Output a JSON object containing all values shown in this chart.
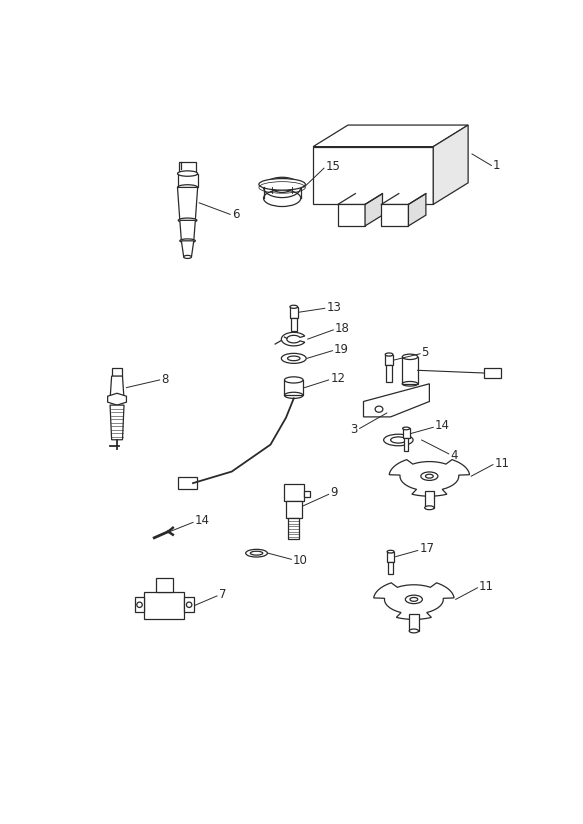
{
  "bg_color": "#ffffff",
  "line_color": "#2a2a2a",
  "label_color": "#2a2a2a",
  "fig_width": 5.83,
  "fig_height": 8.24,
  "dpi": 100,
  "lw": 0.9
}
